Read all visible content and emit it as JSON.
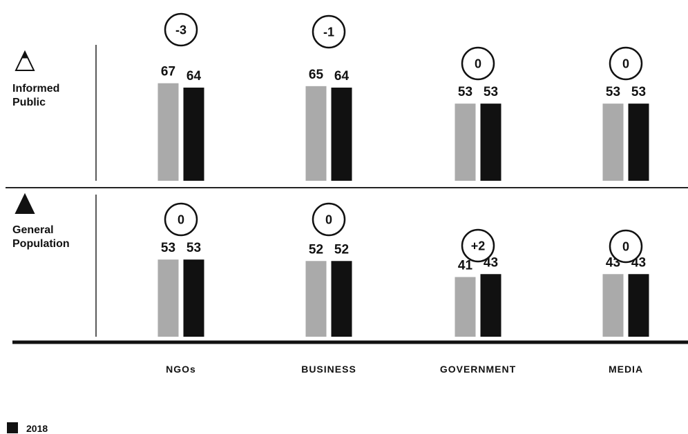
{
  "chart_data": {
    "type": "bar",
    "categories": [
      "NGOs",
      "BUSINESS",
      "GOVERNMENT",
      "MEDIA"
    ],
    "segments": [
      {
        "label_lines": [
          "Informed",
          "Public"
        ],
        "icon": "outline-triangle-icon",
        "series": [
          {
            "values": [
              67,
              65,
              53,
              53
            ],
            "color": "#aaaaaa"
          },
          {
            "name": "2018",
            "values": [
              64,
              64,
              53,
              53
            ],
            "color": "#111111"
          }
        ],
        "changes": [
          "-3",
          "-1",
          "0",
          "0"
        ]
      },
      {
        "label_lines": [
          "General",
          "Population"
        ],
        "icon": "filled-triangle-icon",
        "series": [
          {
            "values": [
              53,
              52,
              41,
              43
            ],
            "color": "#aaaaaa"
          },
          {
            "name": "2018",
            "values": [
              53,
              52,
              43,
              43
            ],
            "color": "#111111"
          }
        ],
        "changes": [
          "0",
          "0",
          "+2",
          "0"
        ]
      }
    ],
    "legend": [
      {
        "label": "2018",
        "color": "#111111"
      }
    ]
  }
}
